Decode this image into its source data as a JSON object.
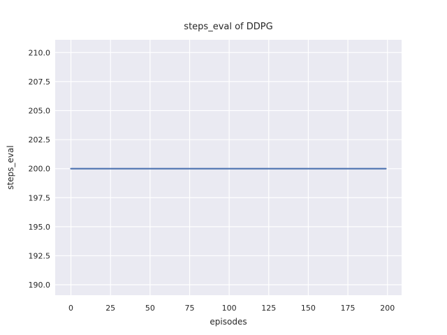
{
  "figure": {
    "background": "#FFFFFF"
  },
  "chart_data": {
    "type": "line",
    "title": "steps_eval of DDPG",
    "xlabel": "episodes",
    "ylabel": "steps_eval",
    "series": [
      {
        "name": "steps_eval",
        "color": "#4C72B0",
        "x": [
          0,
          199
        ],
        "y": [
          200,
          200
        ]
      }
    ],
    "xticks": [
      0,
      25,
      50,
      75,
      100,
      125,
      150,
      175,
      200
    ],
    "xtick_labels": [
      "0",
      "25",
      "50",
      "75",
      "100",
      "125",
      "150",
      "175",
      "200"
    ],
    "yticks": [
      190,
      192.5,
      195,
      197.5,
      200,
      202.5,
      205,
      207.5,
      210
    ],
    "ytick_labels": [
      "190.0",
      "192.5",
      "195.0",
      "197.5",
      "200.0",
      "202.5",
      "205.0",
      "207.5",
      "210.0"
    ],
    "xlim": [
      -9.95,
      208.95
    ],
    "ylim": [
      189.1,
      211.1
    ],
    "grid": true,
    "legend": "none",
    "plot_bg": "#EAEAF2",
    "grid_color": "#FFFFFF",
    "text_color": "#262626"
  }
}
